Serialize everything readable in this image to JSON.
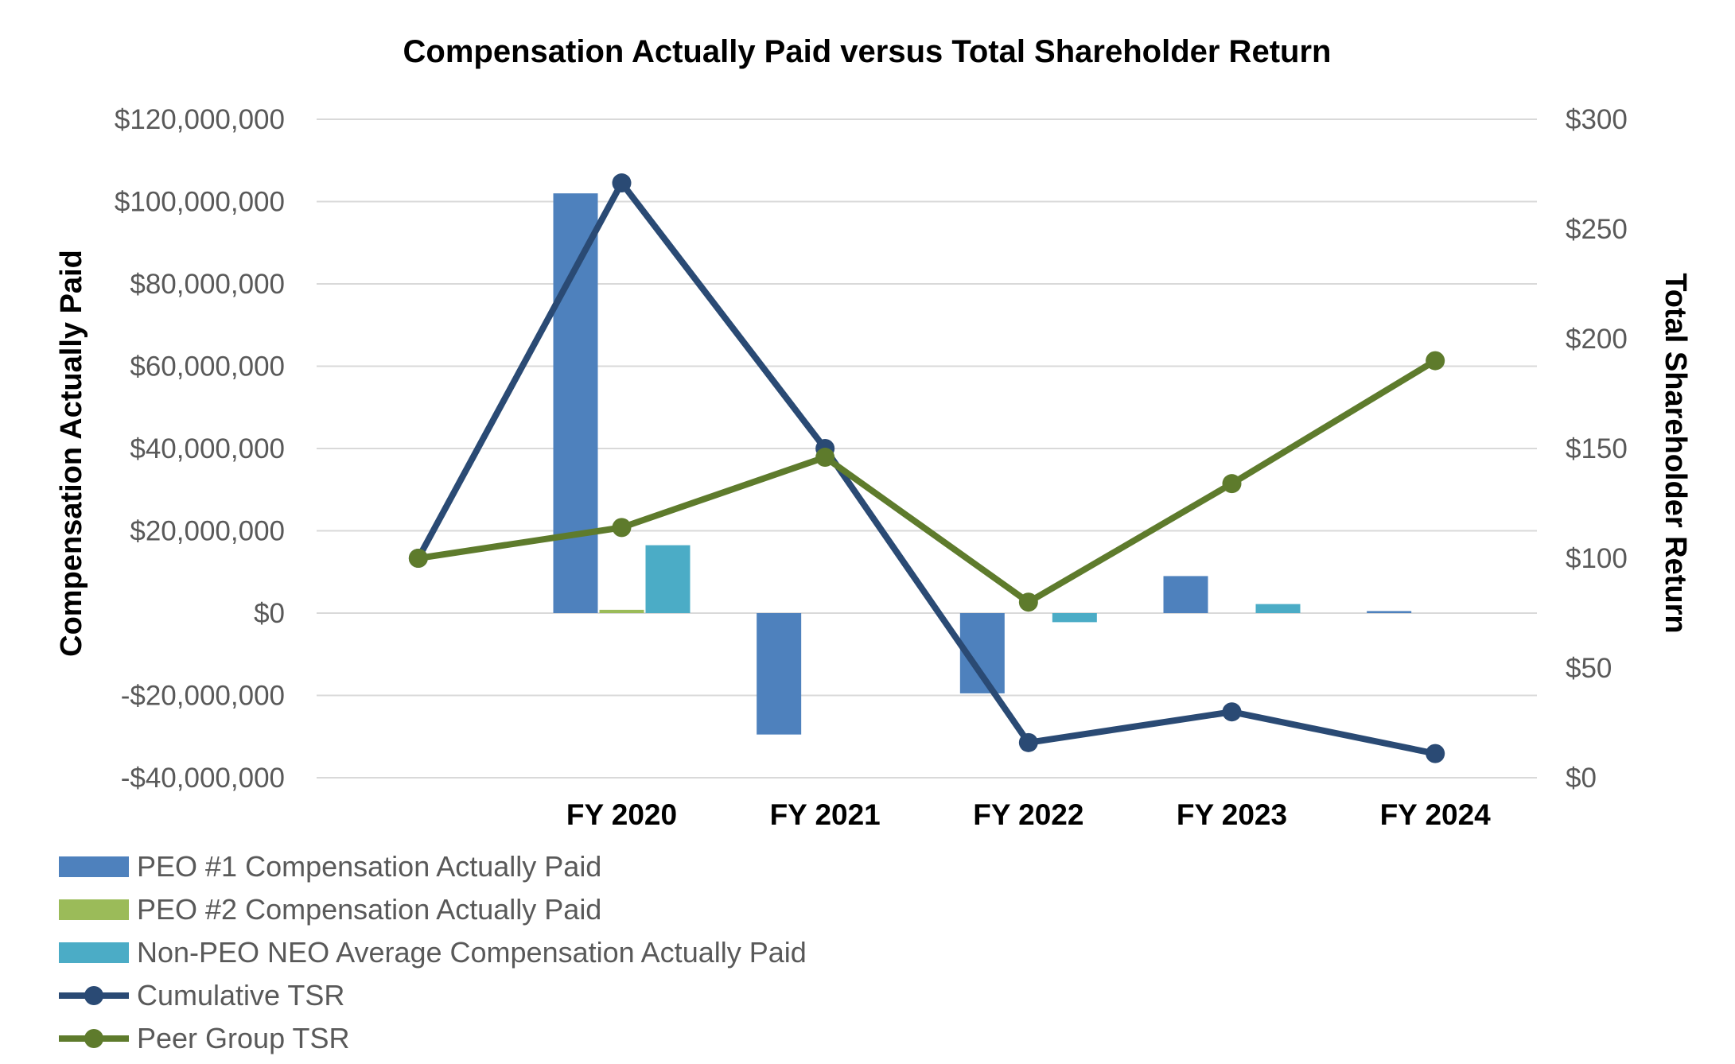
{
  "chart_data": {
    "type": "bar+line",
    "title": "Compensation Actually Paid versus Total Shareholder Return",
    "y_left_label": "Compensation Actually Paid",
    "y_right_label": "Total Shareholder Return",
    "y_left_range": [
      -40000000,
      120000000
    ],
    "y_left_ticks": [
      120000000,
      100000000,
      80000000,
      60000000,
      40000000,
      20000000,
      0,
      -20000000,
      -40000000
    ],
    "y_left_tick_labels": [
      "$120,000,000",
      "$100,000,000",
      "$80,000,000",
      "$60,000,000",
      "$40,000,000",
      "$20,000,000",
      "$0",
      "-$20,000,000",
      "-$40,000,000"
    ],
    "y_right_range": [
      0,
      300
    ],
    "y_right_ticks": [
      300,
      250,
      200,
      150,
      100,
      50,
      0
    ],
    "y_right_tick_labels": [
      "$300",
      "$250",
      "$200",
      "$150",
      "$100",
      "$50",
      "$0"
    ],
    "grid": true,
    "legend_position": "bottom-left",
    "categories": [
      "",
      "FY 2020",
      "FY 2021",
      "FY 2022",
      "FY 2023",
      "FY 2024"
    ],
    "bar_series": [
      {
        "name": "PEO #1 Compensation Actually Paid",
        "color": "#4e81bd",
        "values": [
          null,
          102000000,
          -29500000,
          -19500000,
          9000000,
          500000
        ]
      },
      {
        "name": "PEO #2 Compensation Actually Paid",
        "color": "#9bbb59",
        "values": [
          null,
          800000,
          null,
          null,
          null,
          null
        ]
      },
      {
        "name": "Non-PEO NEO Average Compensation Actually Paid",
        "color": "#4bacc6",
        "values": [
          null,
          16500000,
          null,
          -2200000,
          2200000,
          null
        ]
      }
    ],
    "line_series": [
      {
        "name": "Cumulative TSR",
        "color": "#2a4a74",
        "axis": "right",
        "values": [
          100,
          271,
          150,
          16,
          30,
          11
        ]
      },
      {
        "name": "Peer Group TSR",
        "color": "#5e7b2c",
        "axis": "right",
        "values": [
          100,
          114,
          146,
          80,
          134,
          190
        ]
      }
    ]
  }
}
